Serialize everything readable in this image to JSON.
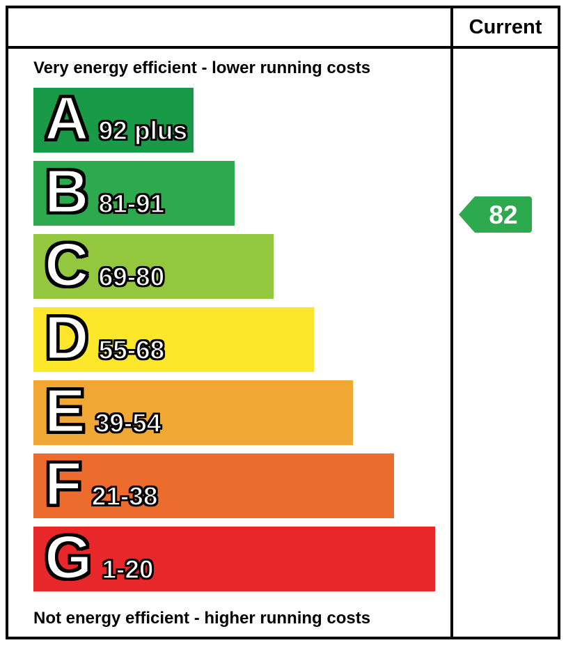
{
  "header": {
    "current_label": "Current"
  },
  "captions": {
    "top": "Very energy efficient - lower running costs",
    "bottom": "Not energy efficient - higher running costs"
  },
  "bands": [
    {
      "letter": "A",
      "range": "92 plus",
      "color": "#189a46",
      "width_pct": 39
    },
    {
      "letter": "B",
      "range": "81-91",
      "color": "#2daa4e",
      "width_pct": 49
    },
    {
      "letter": "C",
      "range": "69-80",
      "color": "#93c83e",
      "width_pct": 58.5
    },
    {
      "letter": "D",
      "range": "55-68",
      "color": "#fde72b",
      "width_pct": 68.5
    },
    {
      "letter": "E",
      "range": "39-54",
      "color": "#f0a733",
      "width_pct": 78
    },
    {
      "letter": "F",
      "range": "21-38",
      "color": "#ec6c2d",
      "width_pct": 88
    },
    {
      "letter": "G",
      "range": "1-20",
      "color": "#e8272b",
      "width_pct": 98
    }
  ],
  "current": {
    "value": "82",
    "band": "B",
    "color": "#2daa4e"
  },
  "chart_data": {
    "type": "bar",
    "orientation": "horizontal",
    "categories": [
      "A",
      "B",
      "C",
      "D",
      "E",
      "F",
      "G"
    ],
    "band_ranges": [
      "92 plus",
      "81-91",
      "69-80",
      "55-68",
      "39-54",
      "21-38",
      "1-20"
    ],
    "bar_relative_lengths_pct": [
      39,
      49,
      58.5,
      68.5,
      78,
      88,
      98
    ],
    "colors": [
      "#189a46",
      "#2daa4e",
      "#93c83e",
      "#fde72b",
      "#f0a733",
      "#ec6c2d",
      "#e8272b"
    ],
    "top_caption": "Very energy efficient - lower running costs",
    "bottom_caption": "Not energy efficient - higher running costs",
    "annotations": [
      {
        "column": "Current",
        "value": 82,
        "band": "B",
        "color": "#2daa4e"
      }
    ],
    "legend_position": "none",
    "grid": false
  }
}
